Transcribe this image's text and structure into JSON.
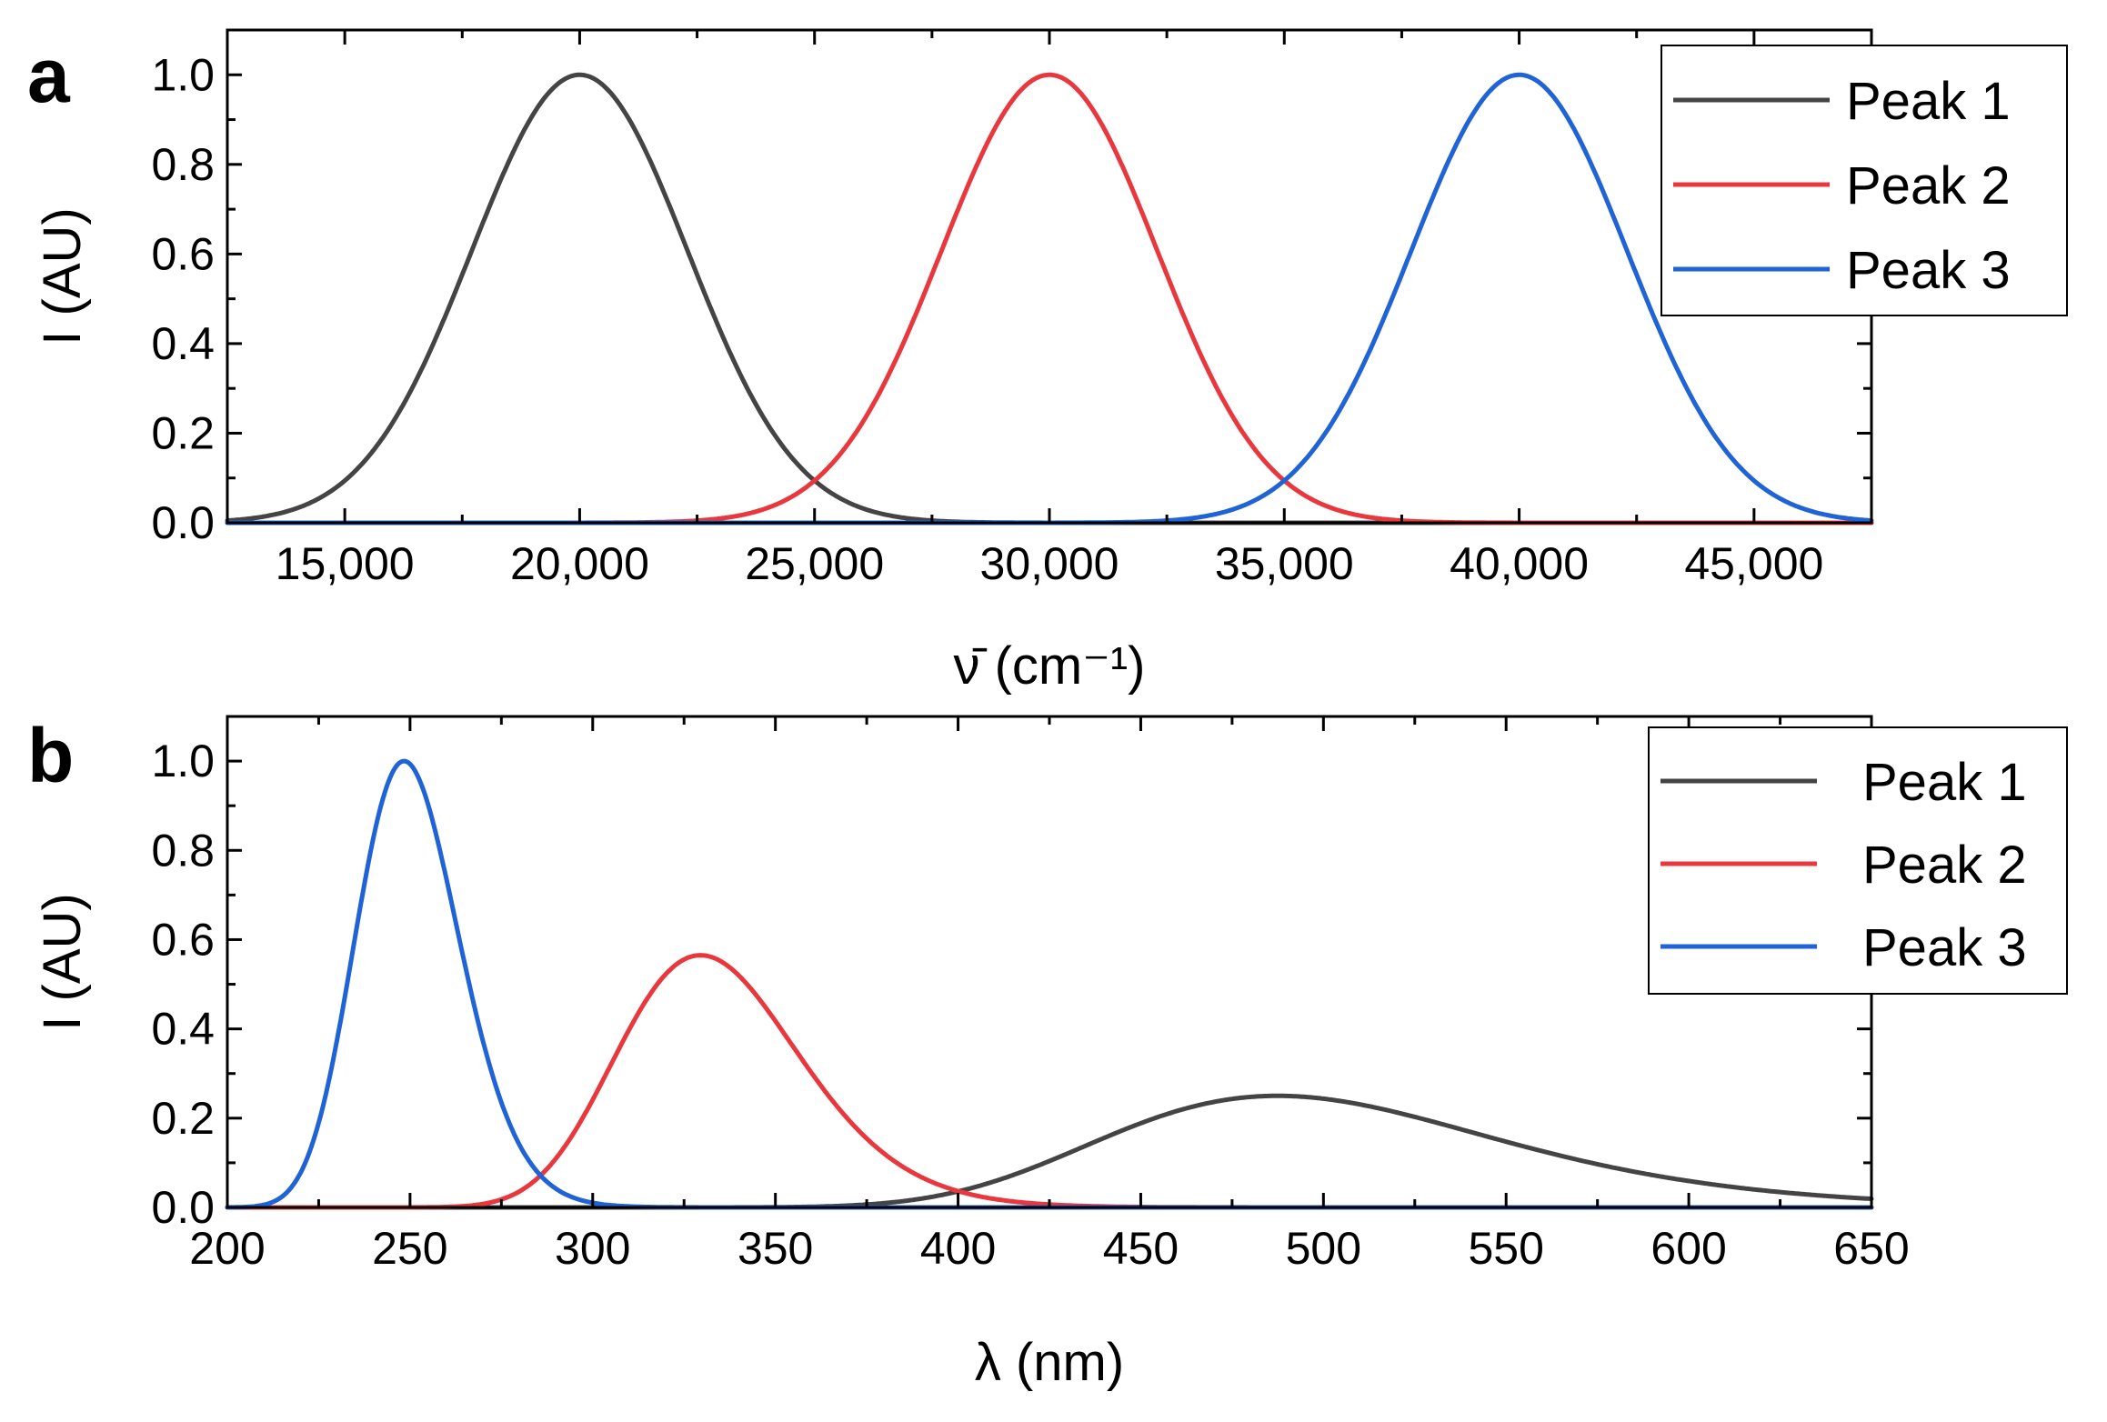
{
  "figure": {
    "background": "#ffffff"
  },
  "chart_data": [
    {
      "panel": "a",
      "type": "line",
      "title": "",
      "xlabel": "ν̄ (cm⁻¹)",
      "ylabel": "I (AU)",
      "xlim": [
        12500,
        47500
      ],
      "ylim": [
        0,
        1.1
      ],
      "x_ticks": [
        15000,
        20000,
        25000,
        30000,
        35000,
        40000,
        45000
      ],
      "x_tick_labels": [
        "15,000",
        "20,000",
        "25,000",
        "30,000",
        "35,000",
        "40,000",
        "45,000"
      ],
      "y_ticks": [
        0.0,
        0.2,
        0.4,
        0.6,
        0.8,
        1.0
      ],
      "y_tick_labels": [
        "0.0",
        "0.2",
        "0.4",
        "0.6",
        "0.8",
        "1.0"
      ],
      "legend_position": "top-right",
      "series": [
        {
          "name": "Peak 1",
          "color": "#444444",
          "shape": "gaussian",
          "center": 20000,
          "sigma": 2300,
          "amplitude": 1.0
        },
        {
          "name": "Peak 2",
          "color": "#e8383d",
          "shape": "gaussian",
          "center": 30000,
          "sigma": 2300,
          "amplitude": 1.0
        },
        {
          "name": "Peak 3",
          "color": "#1f63d6",
          "shape": "gaussian",
          "center": 40000,
          "sigma": 2300,
          "amplitude": 1.0
        }
      ]
    },
    {
      "panel": "b",
      "type": "line",
      "title": "",
      "xlabel": "λ (nm)",
      "ylabel": "I (AU)",
      "xlim": [
        200,
        650
      ],
      "ylim": [
        0,
        1.1
      ],
      "x_ticks": [
        200,
        250,
        300,
        350,
        400,
        450,
        500,
        550,
        600,
        650
      ],
      "x_tick_labels": [
        "200",
        "250",
        "300",
        "350",
        "400",
        "450",
        "500",
        "550",
        "600",
        "650"
      ],
      "y_ticks": [
        0.0,
        0.2,
        0.4,
        0.6,
        0.8,
        1.0
      ],
      "y_tick_labels": [
        "0.0",
        "0.2",
        "0.4",
        "0.6",
        "0.8",
        "1.0"
      ],
      "legend_position": "top-right",
      "series": [
        {
          "name": "Peak 1",
          "color": "#444444",
          "shape": "gaussian-in-wavenumber",
          "center": 20000,
          "sigma": 2300,
          "peak_x": 490,
          "peak_y": 0.25
        },
        {
          "name": "Peak 2",
          "color": "#e8383d",
          "shape": "gaussian-in-wavenumber",
          "center": 30000,
          "sigma": 2300,
          "peak_x": 330,
          "peak_y": 0.565
        },
        {
          "name": "Peak 3",
          "color": "#1f63d6",
          "shape": "gaussian-in-wavenumber",
          "center": 40000,
          "sigma": 2300,
          "peak_x": 249,
          "peak_y": 1.0
        }
      ]
    }
  ]
}
